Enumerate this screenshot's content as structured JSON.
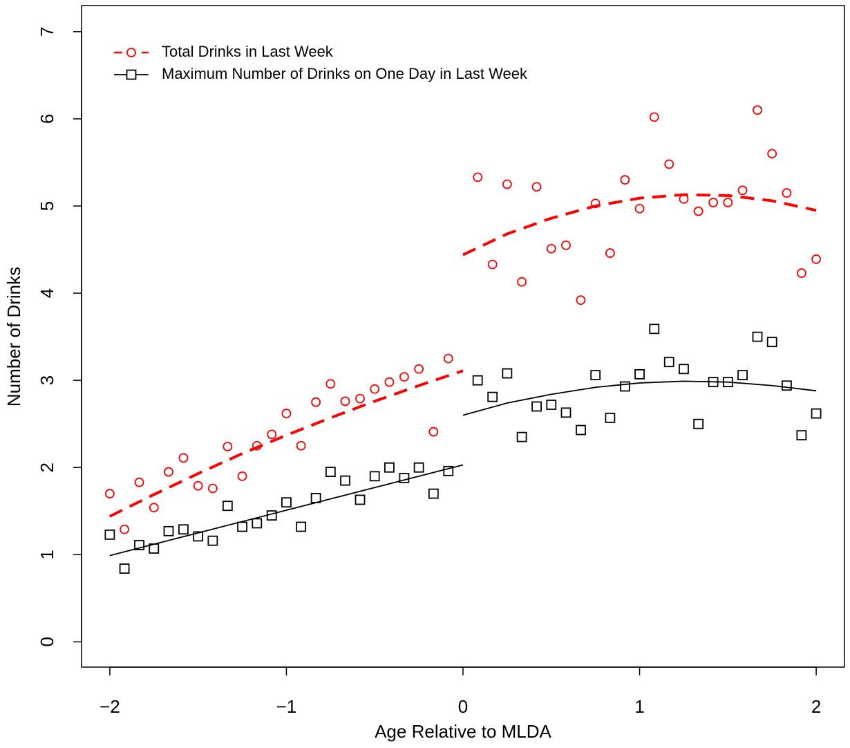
{
  "chart_data": {
    "type": "scatter",
    "x_label": "Age Relative to MLDA",
    "y_label": "Number of Drinks",
    "xlim": [
      -2.16,
      2.16
    ],
    "ylim": [
      -0.29,
      7.3
    ],
    "xticks": [
      {
        "value": -2,
        "label": "−2"
      },
      {
        "value": -1,
        "label": "−1"
      },
      0,
      1,
      2
    ],
    "yticks": [
      0,
      1,
      2,
      3,
      4,
      5,
      6,
      7
    ],
    "legend": "top-left",
    "x": [
      -2,
      -1.917,
      -1.833,
      -1.75,
      -1.667,
      -1.583,
      -1.5,
      -1.417,
      -1.333,
      -1.25,
      -1.167,
      -1.083,
      -1,
      -0.917,
      -0.833,
      -0.75,
      -0.667,
      -0.583,
      -0.5,
      -0.417,
      -0.333,
      -0.25,
      -0.167,
      -0.083,
      0.083,
      0.167,
      0.25,
      0.333,
      0.417,
      0.5,
      0.583,
      0.667,
      0.75,
      0.833,
      0.917,
      1,
      1.083,
      1.167,
      1.25,
      1.333,
      1.417,
      1.5,
      1.583,
      1.667,
      1.75,
      1.833,
      1.917,
      2
    ],
    "series": [
      {
        "name": "Total Drinks in Last Week",
        "color": "#ff0000",
        "marker": "circle",
        "linestyle": "dashed",
        "values": [
          1.7,
          1.29,
          1.83,
          1.54,
          1.95,
          2.11,
          1.79,
          1.76,
          2.24,
          1.9,
          2.25,
          2.38,
          2.62,
          2.25,
          2.75,
          2.96,
          2.76,
          2.79,
          2.9,
          2.98,
          3.04,
          3.13,
          2.41,
          3.25,
          5.33,
          4.33,
          5.25,
          4.13,
          5.22,
          4.51,
          4.55,
          3.92,
          5.03,
          4.46,
          5.3,
          4.97,
          6.02,
          5.48,
          5.08,
          4.94,
          5.04,
          5.04,
          5.18,
          6.1,
          5.6,
          5.15,
          4.23,
          4.39
        ],
        "fits": [
          {
            "x": [
              -2,
              -1.75,
              -1.5,
              -1.25,
              -1,
              -0.75,
              -0.5,
              -0.25,
              0
            ],
            "values": [
              1.44,
              1.69,
              1.93,
              2.16,
              2.37,
              2.57,
              2.76,
              2.94,
              3.11
            ]
          },
          {
            "x": [
              0,
              0.25,
              0.5,
              0.75,
              1,
              1.25,
              1.5,
              1.75,
              2
            ],
            "values": [
              4.44,
              4.68,
              4.86,
              5.0,
              5.09,
              5.13,
              5.12,
              5.06,
              4.95
            ]
          }
        ]
      },
      {
        "name": "Maximum Number of Drinks on One Day in Last Week",
        "color": "#000000",
        "marker": "square",
        "linestyle": "solid",
        "values": [
          1.23,
          0.84,
          1.11,
          1.07,
          1.27,
          1.29,
          1.21,
          1.16,
          1.56,
          1.32,
          1.36,
          1.45,
          1.6,
          1.32,
          1.65,
          1.95,
          1.85,
          1.63,
          1.9,
          2.0,
          1.88,
          2.0,
          1.7,
          1.96,
          3.0,
          2.81,
          3.08,
          2.35,
          2.7,
          2.72,
          2.63,
          2.43,
          3.06,
          2.57,
          2.93,
          3.07,
          3.59,
          3.21,
          3.13,
          2.5,
          2.98,
          2.98,
          3.06,
          3.5,
          3.44,
          2.94,
          2.37,
          2.62
        ],
        "fits": [
          {
            "x": [
              -2,
              -1.5,
              -1,
              -0.5,
              0
            ],
            "values": [
              0.99,
              1.25,
              1.51,
              1.77,
              2.03
            ]
          },
          {
            "x": [
              0,
              0.25,
              0.5,
              0.75,
              1,
              1.25,
              1.5,
              1.75,
              2
            ],
            "values": [
              2.6,
              2.74,
              2.84,
              2.92,
              2.97,
              2.99,
              2.98,
              2.94,
              2.88
            ]
          }
        ]
      }
    ]
  }
}
